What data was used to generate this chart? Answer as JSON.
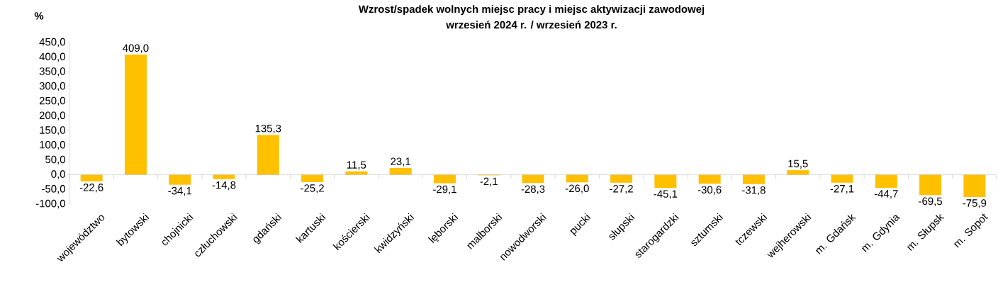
{
  "chart_data": {
    "type": "bar",
    "title": "Wzrost/spadek wolnych miejsc pracy i miejsc aktywizacji zawodowej",
    "subtitle": "wrzesień 2024 r. / wrzesień 2023 r.",
    "ylabel": "%",
    "categories": [
      "województwo",
      "bytowski",
      "chojnicki",
      "człuchowski",
      "gdański",
      "kartuski",
      "kościerski",
      "kwidzyński",
      "lęborski",
      "malborski",
      "nowodworski",
      "pucki",
      "słupski",
      "starogardzki",
      "sztumski",
      "tczewski",
      "wejherowski",
      "m. Gdańsk",
      "m. Gdynia",
      "m. Słupsk",
      "m. Sopot"
    ],
    "values": [
      -22.6,
      409.0,
      -34.1,
      -14.8,
      135.3,
      -25.2,
      11.5,
      23.1,
      -29.1,
      -2.1,
      -28.3,
      -26.0,
      -27.2,
      -45.1,
      -30.6,
      -31.8,
      15.5,
      -27.1,
      -44.7,
      -69.5,
      -75.9
    ],
    "value_labels": [
      "-22,6",
      "409,0",
      "-34,1",
      "-14,8",
      "135,3",
      "-25,2",
      "11,5",
      "23,1",
      "-29,1",
      "-2,1",
      "-28,3",
      "-26,0",
      "-27,2",
      "-45,1",
      "-30,6",
      "-31,8",
      "15,5",
      "-27,1",
      "-44,7",
      "-69,5",
      "-75,9"
    ],
    "color": "#ffc000",
    "ylim": [
      -100,
      450
    ],
    "yticks": [
      {
        "value": -100,
        "label": "-100,0"
      },
      {
        "value": -50,
        "label": "-50,0"
      },
      {
        "value": 0,
        "label": "0,0"
      },
      {
        "value": 50,
        "label": "50,0"
      },
      {
        "value": 100,
        "label": "100,0"
      },
      {
        "value": 150,
        "label": "150,0"
      },
      {
        "value": 200,
        "label": "200,0"
      },
      {
        "value": 250,
        "label": "250,0"
      },
      {
        "value": 300,
        "label": "300,0"
      },
      {
        "value": 350,
        "label": "350,0"
      },
      {
        "value": 400,
        "label": "400,0"
      },
      {
        "value": 450,
        "label": "450,0"
      }
    ]
  }
}
